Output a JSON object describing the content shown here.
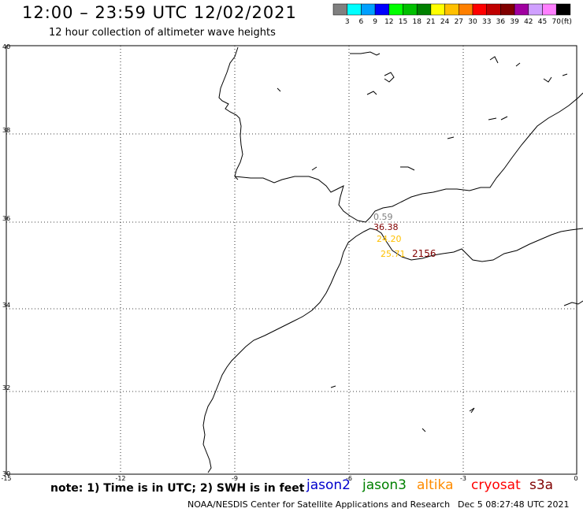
{
  "header": {
    "title": "12:00 – 23:59 UTC 12/02/2021",
    "subtitle": "12 hour collection of altimeter wave heights"
  },
  "colorbar": {
    "colors": [
      "#808080",
      "#00ffff",
      "#00a0ff",
      "#0000ff",
      "#00ff00",
      "#00c000",
      "#008000",
      "#ffff00",
      "#ffc000",
      "#ff8000",
      "#ff0000",
      "#c00000",
      "#800000",
      "#a000a0",
      "#d0a0ff",
      "#ff80ff",
      "#000000"
    ],
    "labels": [
      "3",
      "6",
      "9",
      "12",
      "15",
      "18",
      "21",
      "24",
      "27",
      "30",
      "33",
      "36",
      "39",
      "42",
      "45",
      "70"
    ],
    "unit": "(ft)"
  },
  "axes": {
    "lat_labels": [
      "40",
      "38",
      "36",
      "34",
      "32",
      "30"
    ],
    "lon_labels": [
      "-15",
      "-12",
      "-9",
      "-6",
      "-3",
      "0"
    ]
  },
  "observations": [
    {
      "value": "0.59",
      "color": "#808080"
    },
    {
      "value": "36.38",
      "color": "#800000"
    },
    {
      "value": "24.20",
      "color": "#ffc000"
    },
    {
      "value": "25.71",
      "color": "#ffc000"
    },
    {
      "value": "2156",
      "color": "#800000"
    }
  ],
  "footer": {
    "note": "note:  1) Time is in UTC;  2) SWH is in feet",
    "satellites": [
      {
        "name": "jason2",
        "color": "#0000cc"
      },
      {
        "name": "jason3",
        "color": "#008000"
      },
      {
        "name": "altika",
        "color": "#ff8c00"
      },
      {
        "name": "cryosat",
        "color": "#ff0000"
      },
      {
        "name": "s3a",
        "color": "#800000"
      }
    ],
    "credit": "NOAA/NESDIS Center for Satellite Applications and Research",
    "timestamp": "Dec  5 08:27:48 UTC 2021"
  }
}
